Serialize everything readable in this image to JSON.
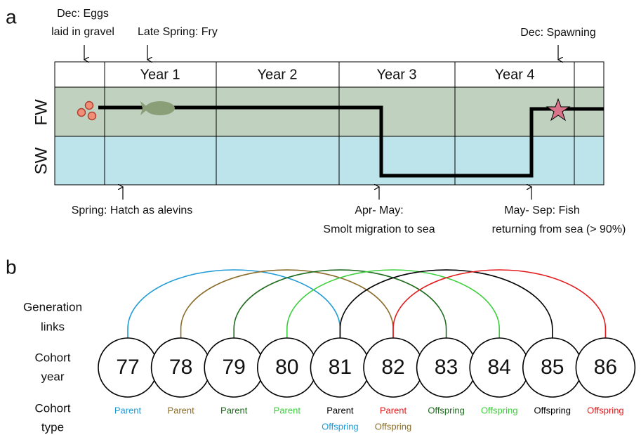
{
  "panel_a": {
    "label": "a",
    "years": [
      "Year 1",
      "Year 2",
      "Year 3",
      "Year 4"
    ],
    "rows": [
      "FW",
      "SW"
    ],
    "annotations": {
      "eggs": [
        "Dec: Eggs",
        "laid in gravel"
      ],
      "fry": "Late Spring: Fry",
      "spawning": "Dec: Spawning",
      "hatch": "Spring: Hatch as alevins",
      "smolt": [
        "Apr- May:",
        "Smolt migration to sea"
      ],
      "returning": [
        "May- Sep: Fish",
        "returning from sea (> 90%)"
      ]
    }
  },
  "panel_b": {
    "label": "b",
    "row_labels": {
      "links": [
        "Generation",
        "links"
      ],
      "year": [
        "Cohort",
        "year"
      ],
      "type": [
        "Cohort",
        "type"
      ]
    },
    "cohorts": [
      "77",
      "78",
      "79",
      "80",
      "81",
      "82",
      "83",
      "84",
      "85",
      "86"
    ],
    "links": [
      {
        "color": "#1e9ad6"
      },
      {
        "color": "#8a6d2a"
      },
      {
        "color": "#1e6b1e"
      },
      {
        "color": "#3ccf3c"
      },
      {
        "color": "#000000"
      },
      {
        "color": "#e41a1c"
      }
    ],
    "types": [
      [
        {
          "text": "Parent",
          "color": "#1e9ad6"
        }
      ],
      [
        {
          "text": "Parent",
          "color": "#8a6d2a"
        }
      ],
      [
        {
          "text": "Parent",
          "color": "#1e6b1e"
        }
      ],
      [
        {
          "text": "Parent",
          "color": "#3ccf3c"
        }
      ],
      [
        {
          "text": "Parent",
          "color": "#000000"
        },
        {
          "text": "Offspring",
          "color": "#1e9ad6"
        }
      ],
      [
        {
          "text": "Parent",
          "color": "#e41a1c"
        },
        {
          "text": "Offspring",
          "color": "#8a6d2a"
        }
      ],
      [
        {
          "text": "Offspring",
          "color": "#1e6b1e"
        }
      ],
      [
        {
          "text": "Offspring",
          "color": "#3ccf3c"
        }
      ],
      [
        {
          "text": "Offspring",
          "color": "#000000"
        }
      ],
      [
        {
          "text": "Offspring",
          "color": "#e41a1c"
        }
      ]
    ]
  }
}
